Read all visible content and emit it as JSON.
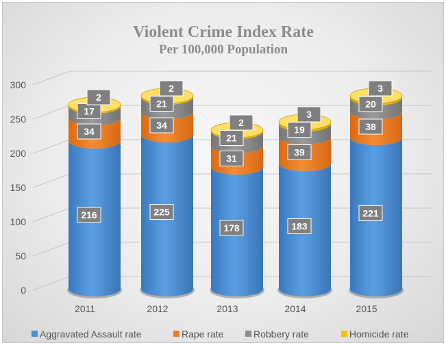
{
  "chart_data": {
    "type": "bar",
    "stacked": true,
    "style": "3d-cylinder",
    "title": "Violent Crime Index Rate",
    "subtitle": "Per 100,000 Population",
    "categories": [
      "2011",
      "2012",
      "2013",
      "2014",
      "2015"
    ],
    "series": [
      {
        "name": "Aggravated Assault rate",
        "color": "#4a8fd6",
        "values": [
          216,
          225,
          178,
          183,
          221
        ]
      },
      {
        "name": "Rape rate",
        "color": "#ef7d22",
        "values": [
          34,
          34,
          31,
          39,
          38
        ]
      },
      {
        "name": "Robbery rate",
        "color": "#8c8c8c",
        "values": [
          17,
          21,
          21,
          19,
          20
        ]
      },
      {
        "name": "Homicide rate",
        "color": "#f2c200",
        "values": [
          2,
          2,
          2,
          3,
          3
        ]
      }
    ],
    "ylim": [
      0,
      300
    ],
    "yticks": [
      "0",
      "50",
      "100",
      "150",
      "200",
      "250",
      "300"
    ],
    "grid": true,
    "legend": "bottom"
  }
}
